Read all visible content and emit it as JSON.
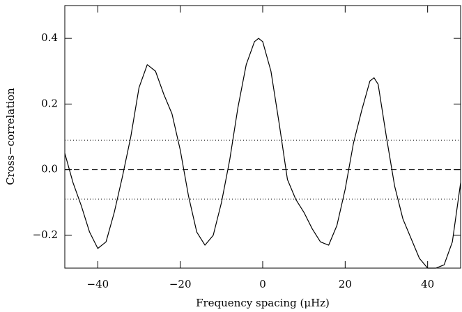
{
  "chart_data": {
    "type": "line",
    "xlabel": "Frequency spacing (μHz)",
    "ylabel": "Cross−correlation",
    "xlim": [
      -48,
      48
    ],
    "ylim": [
      -0.3,
      0.5
    ],
    "xticks": [
      {
        "value": -40,
        "label": "−40"
      },
      {
        "value": -20,
        "label": "−20"
      },
      0,
      20,
      40
    ],
    "yticks": [
      {
        "value": -0.2,
        "label": "−0.2"
      },
      {
        "value": 0,
        "label": "0.0"
      },
      0.2,
      0.4
    ],
    "hlines": [
      {
        "value": 0.09,
        "style": "dotted"
      },
      {
        "value": 0,
        "style": "dashed"
      },
      {
        "value": -0.09,
        "style": "dotted"
      }
    ],
    "series": [
      {
        "color": "#000000",
        "x": [
          -48,
          -46,
          -44,
          -42,
          -40,
          -38,
          -36,
          -34,
          -32,
          -30,
          -28,
          -26,
          -24,
          -22,
          -20,
          -18,
          -16,
          -14,
          -12,
          -10,
          -8,
          -6,
          -4,
          -2,
          -1,
          0,
          2,
          4,
          6,
          8,
          10,
          12,
          14,
          16,
          18,
          20,
          22,
          24,
          26,
          27,
          28,
          30,
          32,
          34,
          36,
          38,
          40,
          42,
          44,
          46,
          48
        ],
        "values": [
          0.05,
          -0.04,
          -0.11,
          -0.19,
          -0.24,
          -0.22,
          -0.13,
          -0.02,
          0.1,
          0.25,
          0.32,
          0.3,
          0.23,
          0.17,
          0.06,
          -0.08,
          -0.19,
          -0.23,
          -0.2,
          -0.1,
          0.03,
          0.19,
          0.32,
          0.39,
          0.4,
          0.39,
          0.3,
          0.14,
          -0.03,
          -0.09,
          -0.13,
          -0.18,
          -0.22,
          -0.23,
          -0.17,
          -0.06,
          0.08,
          0.18,
          0.27,
          0.28,
          0.26,
          0.1,
          -0.05,
          -0.15,
          -0.21,
          -0.27,
          -0.3,
          -0.3,
          -0.29,
          -0.22,
          -0.04
        ]
      }
    ]
  }
}
